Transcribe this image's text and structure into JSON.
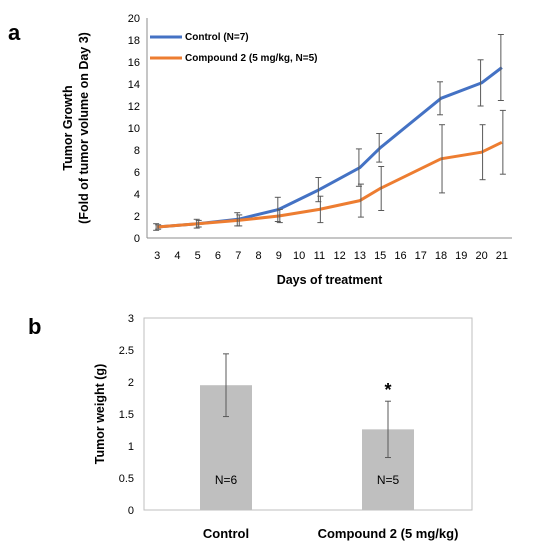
{
  "chart_data": [
    {
      "panel": "a",
      "type": "line",
      "xlabel": "Days of treatment",
      "ylabel_lines": [
        "Tumor Growth",
        "(Fold of tumor volume on Day 3)"
      ],
      "x_ticks": [
        "3",
        "4",
        "5",
        "6",
        "7",
        "8",
        "9",
        "10",
        "11",
        "12",
        "13",
        "15",
        "16",
        "17",
        "18",
        "19",
        "20",
        "21"
      ],
      "y_ticks": [
        "0",
        "2",
        "4",
        "6",
        "8",
        "10",
        "12",
        "14",
        "16",
        "18",
        "20"
      ],
      "ylim": [
        0,
        20
      ],
      "grid": false,
      "legend_position": "top-left",
      "series": [
        {
          "name": "Control (N=7)",
          "color": "#4472C4",
          "x": [
            "3",
            "5",
            "7",
            "9",
            "11",
            "13",
            "15",
            "18",
            "20",
            "21"
          ],
          "values": [
            1.0,
            1.3,
            1.7,
            2.6,
            4.4,
            6.4,
            8.2,
            12.7,
            14.1,
            15.5
          ],
          "error": [
            0.3,
            0.4,
            0.6,
            1.1,
            1.1,
            1.7,
            1.3,
            1.5,
            2.1,
            3.0
          ]
        },
        {
          "name": "Compound 2 (5 mg/kg, N=5)",
          "color": "#ED7D31",
          "x": [
            "3",
            "5",
            "7",
            "9",
            "11",
            "13",
            "15",
            "18",
            "20",
            "21"
          ],
          "values": [
            1.0,
            1.3,
            1.6,
            2.0,
            2.6,
            3.4,
            4.5,
            7.2,
            7.8,
            8.7
          ],
          "error": [
            0.2,
            0.3,
            0.5,
            0.6,
            1.2,
            1.5,
            2.0,
            3.1,
            2.5,
            2.9
          ]
        }
      ]
    },
    {
      "panel": "b",
      "type": "bar",
      "ylabel": "Tumor weight (g)",
      "categories": [
        "Control",
        "Compound 2 (5 mg/kg)"
      ],
      "values": [
        1.95,
        1.26
      ],
      "error": [
        0.49,
        0.44
      ],
      "bar_labels": [
        "N=6",
        "N=5"
      ],
      "significance": [
        "",
        "*"
      ],
      "bar_color": "#BFBFBF",
      "y_ticks": [
        "0",
        "0.5",
        "1",
        "1.5",
        "2",
        "2.5",
        "3"
      ],
      "ylim": [
        0,
        3
      ],
      "grid": false
    }
  ]
}
